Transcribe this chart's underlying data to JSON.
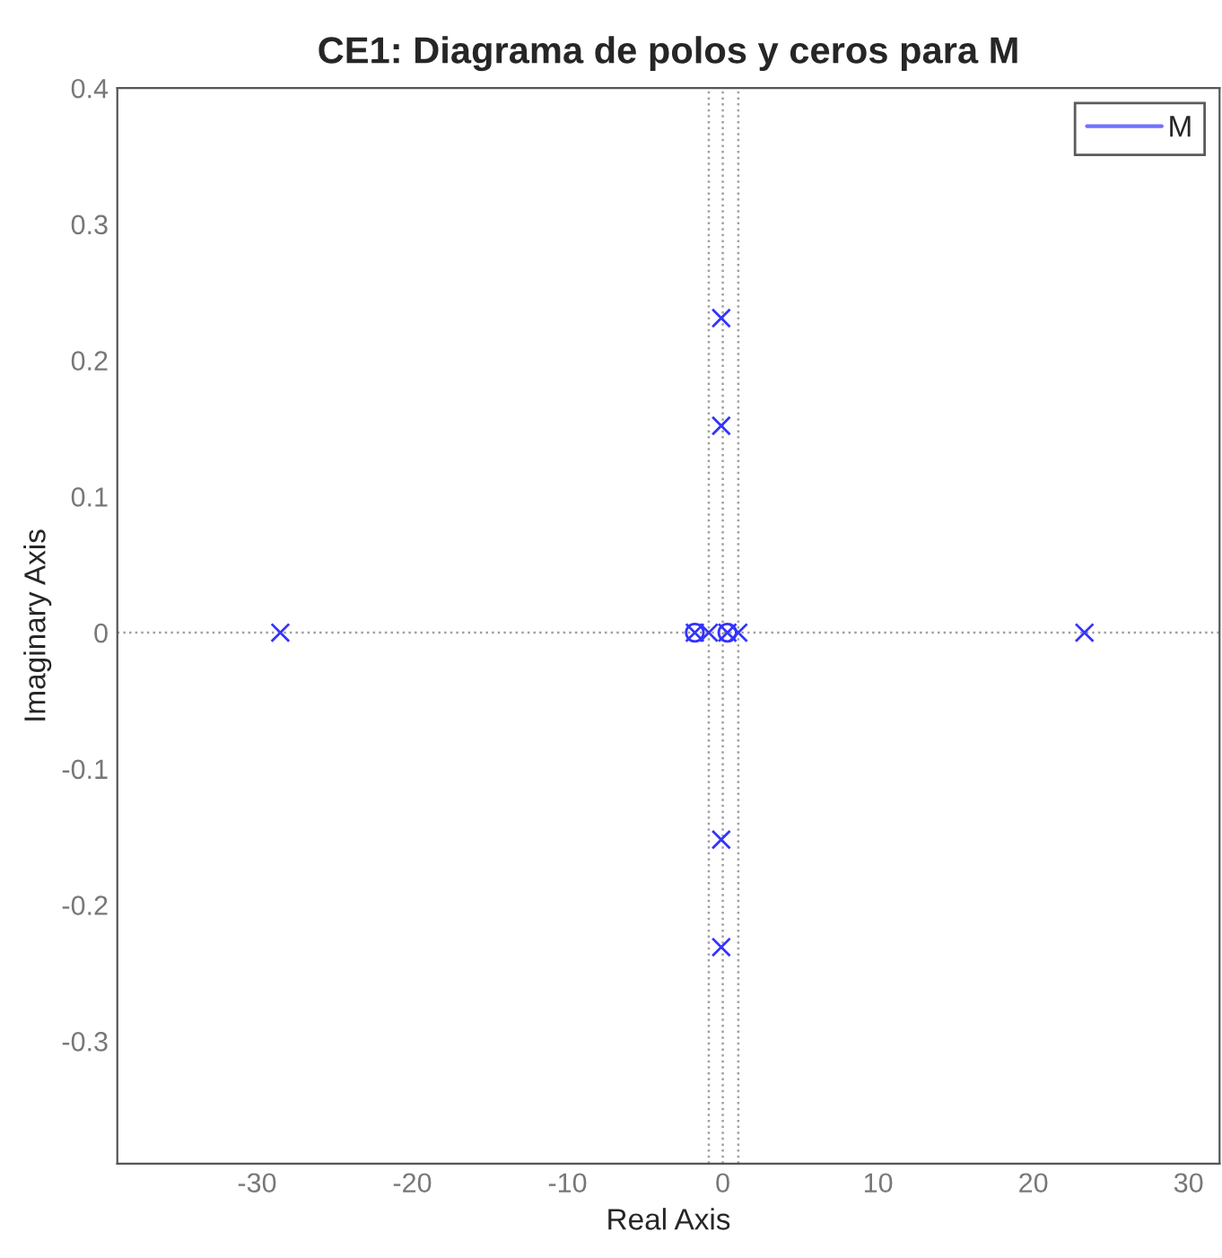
{
  "chart_data": {
    "type": "scatter",
    "title": "CE1: Diagrama de polos y ceros para M",
    "xlabel": "Real Axis",
    "ylabel": "Imaginary Axis",
    "series": [
      {
        "name": "M",
        "color": "#3333ff",
        "marker": "cross",
        "x": [
          -28.5,
          23.3,
          -1.8,
          -0.9,
          0.3,
          1.0,
          -0.1,
          -0.1,
          -0.1,
          -0.1
        ],
        "values": [
          0,
          0,
          0,
          0,
          0,
          0,
          0.231,
          0.152,
          -0.152,
          -0.231
        ]
      },
      {
        "color": "#3333ff",
        "marker": "circle",
        "x": [
          -1.8,
          0.3
        ],
        "values": [
          0,
          0
        ]
      }
    ],
    "ref_lines": [
      {
        "axis": "x",
        "value": -0.9,
        "color": "#a0a0a0",
        "line_style": "dotted"
      },
      {
        "axis": "x",
        "value": 0,
        "color": "#a0a0a0",
        "line_style": "dotted"
      },
      {
        "axis": "x",
        "value": 1.0,
        "color": "#a0a0a0",
        "line_style": "dotted"
      },
      {
        "axis": "y",
        "value": 0,
        "color": "#a0a0a0",
        "line_style": "dotted"
      }
    ],
    "xlim": [
      -39,
      32
    ],
    "xticks": [
      -30,
      -20,
      -10,
      0,
      10,
      20,
      30
    ],
    "ylim": [
      -0.39,
      0.4
    ],
    "yticks": [
      -0.3,
      -0.2,
      -0.1,
      0,
      0.1,
      0.2,
      0.3,
      0.4
    ],
    "grid": false,
    "legend": "top right"
  }
}
